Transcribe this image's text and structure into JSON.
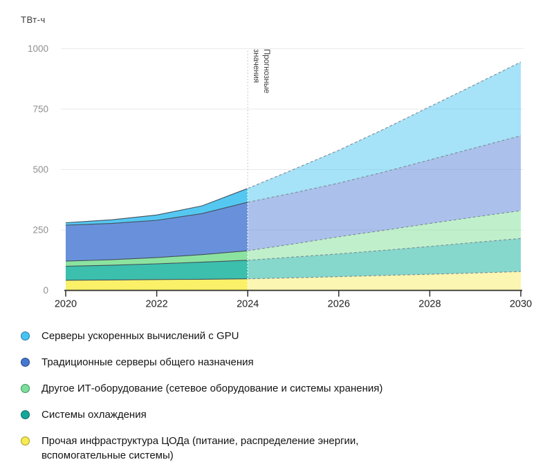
{
  "chart": {
    "unit_label": "ТВт-ч",
    "forecast_annotation": {
      "line1": "Прогнозные",
      "line2": "значения"
    }
  },
  "chart_data": {
    "type": "area",
    "stacked": true,
    "title": "",
    "ylabel": "ТВт-ч",
    "xlabel": "",
    "grid": "horizontal",
    "ylim": [
      0,
      1000
    ],
    "y_ticks": [
      0,
      250,
      500,
      750,
      1000
    ],
    "x": [
      2020,
      2021,
      2022,
      2023,
      2024,
      2025,
      2026,
      2027,
      2028,
      2029,
      2030
    ],
    "x_tick_labels": [
      "2020",
      "2022",
      "2024",
      "2026",
      "2028",
      "2030"
    ],
    "forecast_from_x": 2024,
    "series": [
      {
        "name": "Прочая инфраструктура ЦОДа (питание, распределение энергии, вспомогательные системы)",
        "values": [
          42,
          43,
          45,
          46,
          48,
          52,
          57,
          62,
          67,
          72,
          78
        ],
        "fill": "#FAF169",
        "fill_forecast": "rgba(247,236,91,0.48)"
      },
      {
        "name": "Системы охлаждения",
        "values": [
          58,
          61,
          65,
          71,
          77,
          86,
          94,
          104,
          115,
          127,
          137
        ],
        "fill": "#3CBFAD",
        "fill_forecast": "rgba(60,191,173,0.62)"
      },
      {
        "name": "Другое ИТ-оборудование (сетевое оборудование и системы хранения)",
        "values": [
          21,
          23,
          26,
          31,
          39,
          54,
          71,
          83,
          95,
          105,
          115
        ],
        "fill": "#8CE3A0",
        "fill_forecast": "rgba(140,227,160,0.55)"
      },
      {
        "name": "Традиционные серверы общего назначения",
        "values": [
          149,
          150,
          154,
          170,
          201,
          211,
          222,
          241,
          263,
          286,
          310
        ],
        "fill": "#6991DB",
        "fill_forecast": "rgba(105,145,219,0.56)"
      },
      {
        "name": "Серверы ускоренных вычислений с GPU",
        "values": [
          10,
          15,
          22,
          32,
          57,
          97,
          136,
          178,
          220,
          262,
          305
        ],
        "fill": "#55C8F2",
        "fill_forecast": "rgba(85,200,242,0.52)"
      }
    ],
    "line_color_history": "#42505c",
    "line_color_forecast": "#7b8b94",
    "gridline_color": "#e9e9e9",
    "axis_color": "#2f2f2f",
    "y_tick_label_color": "#8f8f8f",
    "x_tick_label_color": "#1f1f1f"
  },
  "legend": {
    "items": [
      {
        "label": "Серверы ускоренных вычислений с GPU",
        "color": "#45C4F2",
        "border": "#2878A8"
      },
      {
        "label": "Традиционные серверы общего назначения",
        "color": "#4678D2",
        "border": "#26477E"
      },
      {
        "label": "Другое ИТ-оборудование (сетевое оборудование и системы хранения)",
        "color": "#7DE09A",
        "border": "#38915C"
      },
      {
        "label": "Системы охлаждения",
        "color": "#12A99A",
        "border": "#0C6B62"
      },
      {
        "label": "Прочая инфраструктура ЦОДа (питание, распределение энергии,\nвспомогательные системы)",
        "color": "#F6EB4F",
        "border": "#A89A28"
      }
    ]
  }
}
